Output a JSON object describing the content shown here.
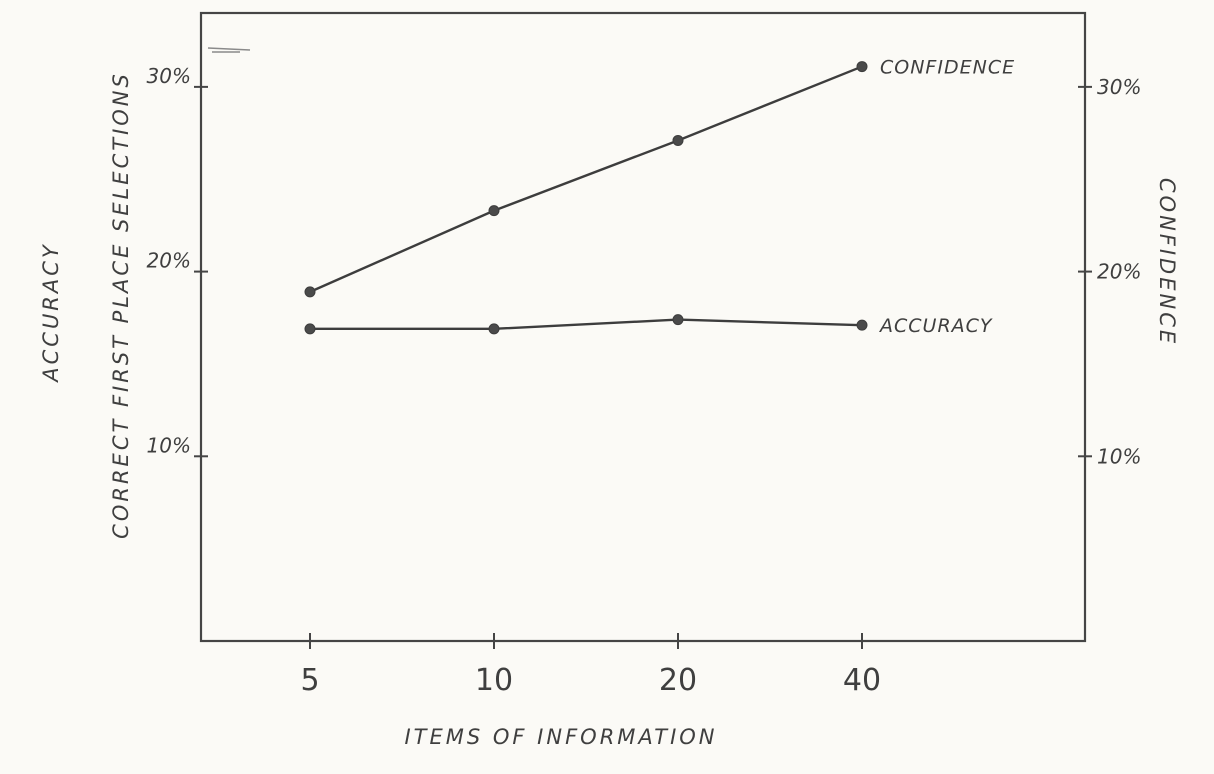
{
  "chart_data": {
    "type": "line",
    "x_axis": {
      "label": "ITEMS OF INFORMATION",
      "categories": [
        "5",
        "10",
        "20",
        "40"
      ]
    },
    "y_axis_left": {
      "labels": [
        "ACCURACY",
        "CORRECT FIRST PLACE SELECTIONS"
      ],
      "ticks": [
        {
          "value": 10,
          "label": "10%"
        },
        {
          "value": 20,
          "label": "20%"
        },
        {
          "value": 30,
          "label": "30%"
        }
      ],
      "ylim": [
        0,
        34
      ]
    },
    "y_axis_right": {
      "label": "CONFIDENCE",
      "ticks": [
        {
          "value": 10,
          "label": "10%"
        },
        {
          "value": 20,
          "label": "20%"
        },
        {
          "value": 30,
          "label": "30%"
        }
      ],
      "ylim": [
        0,
        34
      ]
    },
    "series": [
      {
        "name": "CONFIDENCE",
        "values": [
          18.9,
          23.3,
          27.1,
          31.1
        ]
      },
      {
        "name": "ACCURACY",
        "values": [
          16.9,
          16.9,
          17.4,
          17.1
        ]
      }
    ],
    "grid": false,
    "legend": "series labels at right end of lines"
  }
}
